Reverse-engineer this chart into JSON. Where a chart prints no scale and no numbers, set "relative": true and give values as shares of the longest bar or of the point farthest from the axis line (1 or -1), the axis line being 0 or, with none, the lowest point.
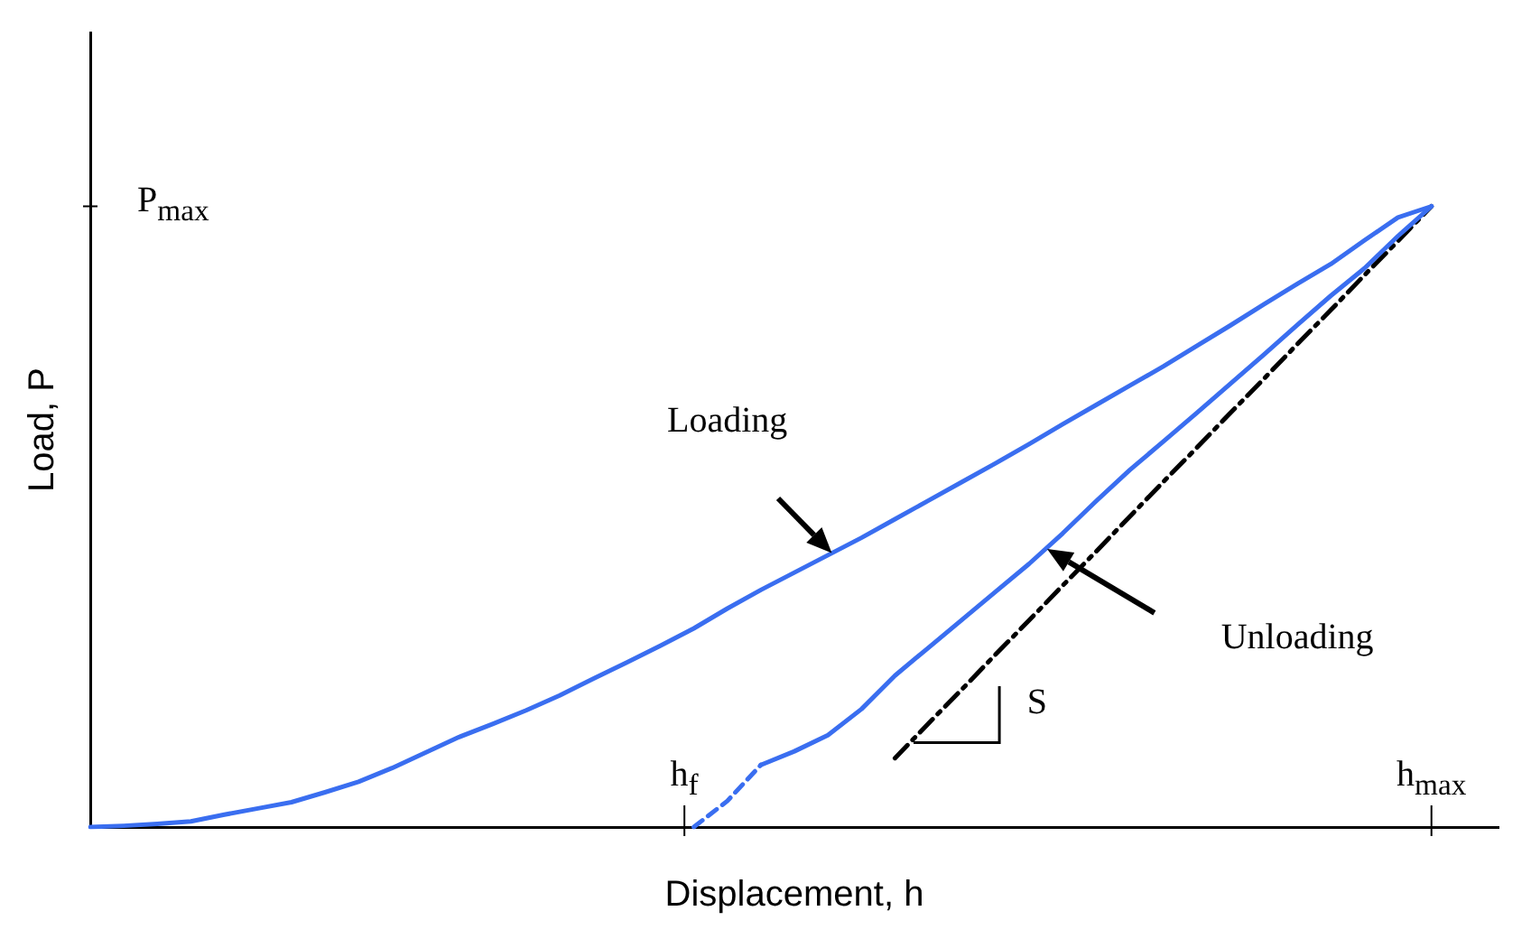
{
  "chart_data": {
    "type": "line",
    "relative": true,
    "xlabel": "Displacement, h",
    "ylabel": "Load, P",
    "categories": [
      null,
      null,
      null,
      null,
      null,
      null,
      null,
      null,
      null,
      null,
      null,
      null,
      null,
      null,
      null,
      null,
      null,
      null,
      null,
      null,
      null,
      null,
      null,
      null,
      null,
      null,
      null,
      null,
      null,
      null,
      null,
      null,
      null,
      null,
      null,
      null,
      null,
      null,
      null,
      null,
      null,
      null,
      null
    ],
    "series": [
      {
        "color": "#3a6ef0",
        "values": [
          0,
          0.002,
          0.005,
          0.009,
          0.02,
          0.03,
          0.04,
          0.056,
          0.073,
          0.095,
          0.12,
          0.145,
          0.166,
          0.188,
          0.212,
          0.239,
          0.265,
          0.292,
          0.32,
          0.352,
          0.382,
          0.41,
          0.438,
          0.466,
          0.496,
          0.526,
          0.556,
          0.586,
          0.617,
          0.649,
          0.68,
          0.711,
          0.742,
          0.775,
          0.808,
          0.842,
          0.875,
          0.907,
          0.945,
          0.982,
          1.0,
          null,
          null
        ]
      },
      {
        "color": "#3a6ef0",
        "values": [
          null,
          null,
          null,
          null,
          null,
          null,
          null,
          null,
          null,
          null,
          null,
          null,
          null,
          null,
          null,
          null,
          null,
          null,
          null,
          null,
          0.1,
          0.122,
          0.148,
          0.19,
          0.244,
          0.289,
          0.334,
          0.379,
          0.424,
          0.473,
          0.525,
          0.575,
          0.621,
          0.667,
          0.714,
          0.761,
          0.809,
          0.856,
          0.9,
          0.952,
          1.0,
          null,
          null
        ]
      },
      {
        "color": "#3a6ef0",
        "line_style": "dashed",
        "values": [
          null,
          null,
          null,
          null,
          null,
          null,
          null,
          null,
          null,
          null,
          null,
          null,
          null,
          null,
          null,
          null,
          null,
          null,
          0,
          0.042,
          0.1,
          null,
          null,
          null,
          null,
          null,
          null,
          null,
          null,
          null,
          null,
          null,
          null,
          null,
          null,
          null,
          null,
          null,
          null,
          null,
          null,
          null,
          null
        ]
      },
      {
        "color": "#000000",
        "line_style": "dashdot",
        "values": [
          null,
          null,
          null,
          null,
          null,
          null,
          null,
          null,
          null,
          null,
          null,
          null,
          null,
          null,
          null,
          null,
          null,
          null,
          null,
          null,
          null,
          null,
          null,
          null,
          0.111,
          0.167,
          0.222,
          0.278,
          0.333,
          0.389,
          0.444,
          0.5,
          0.556,
          0.611,
          0.667,
          0.722,
          0.778,
          0.833,
          0.889,
          0.944,
          1.0,
          null,
          null
        ]
      }
    ],
    "annotations": [
      "P$_{max}$",
      "h$_{f}$",
      "h$_{max}$",
      "Loading",
      "Unloading",
      "S"
    ]
  }
}
